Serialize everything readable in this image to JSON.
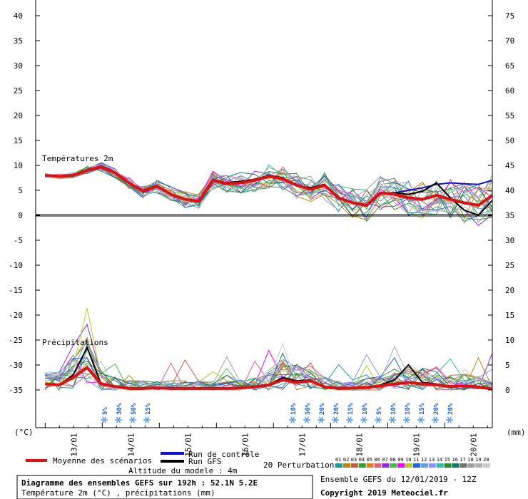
{
  "chart_data": {
    "type": "line",
    "x_dates": [
      "13/01",
      "14/01",
      "15/01",
      "16/01",
      "17/01",
      "18/01",
      "19/01",
      "20/01"
    ],
    "x_range_hours": [
      0,
      192
    ],
    "left_axis": {
      "unit": "(°C)",
      "ticks": [
        40,
        35,
        30,
        25,
        20,
        15,
        10,
        5,
        0,
        -5,
        -10,
        -15,
        -20,
        -25,
        -30,
        -35
      ],
      "range": [
        -35,
        40
      ]
    },
    "right_axis": {
      "unit": "(mm)",
      "ticks": [
        75,
        70,
        65,
        60,
        55,
        50,
        45,
        40,
        35,
        30,
        25,
        20,
        15,
        10,
        5,
        0
      ],
      "range": [
        0,
        75
      ]
    },
    "panel_temperature_label": "Températures 2m",
    "panel_precip_label": "Précipitations",
    "temperature": {
      "mean": [
        8,
        7.8,
        8,
        9,
        9.7,
        8.5,
        6.5,
        4.8,
        5.8,
        4.2,
        3.2,
        2.8,
        7,
        6.3,
        6.5,
        7,
        7.8,
        7.3,
        6,
        5.2,
        6,
        3.5,
        2.5,
        2,
        4.5,
        4.2,
        3.5,
        3.2,
        4,
        3.2,
        2.5,
        2,
        4
      ],
      "control": [
        8,
        7.8,
        8,
        9,
        9.7,
        8.5,
        6.5,
        4.8,
        5.8,
        4.2,
        3.2,
        2.8,
        7,
        6.3,
        6.5,
        7,
        7.8,
        7.3,
        6,
        5.2,
        6,
        3.5,
        2.5,
        2,
        4.5,
        4.5,
        5,
        5.5,
        6.2,
        6.5,
        6.3,
        6.2,
        7
      ],
      "gfs": [
        8,
        7.8,
        8,
        9,
        9.9,
        8.7,
        6.5,
        5,
        6,
        4.3,
        3.3,
        2.7,
        7.2,
        6.5,
        6.8,
        7.2,
        8,
        7.5,
        6,
        5.5,
        6.2,
        3.4,
        2.4,
        1.8,
        4.3,
        4.5,
        4.2,
        4.8,
        6.5,
        3.5,
        1,
        0,
        3
      ]
    },
    "precipitation_mm": {
      "mean": [
        1.2,
        1,
        2.5,
        4.5,
        1.2,
        0.7,
        0.3,
        0.3,
        0.4,
        0.3,
        0.3,
        0.3,
        0.3,
        0.3,
        0.4,
        0.6,
        1,
        2,
        1.5,
        1.8,
        0.6,
        0.3,
        0.4,
        0.5,
        0.8,
        1.2,
        1.5,
        1.2,
        1,
        0.7,
        0.8,
        0.6,
        0.2
      ],
      "gfs": [
        1.2,
        1,
        3,
        8.5,
        1.2,
        0.8,
        0.2,
        0.2,
        0.3,
        0.2,
        0.2,
        0.2,
        0.2,
        0.2,
        0.3,
        0.5,
        1,
        2.5,
        1.8,
        2,
        0.4,
        0.2,
        0.3,
        0.5,
        1,
        2,
        5,
        1.5,
        1.2,
        0.5,
        0.8,
        0.4,
        0.1
      ]
    },
    "snow_probabilities": [
      {
        "day": 1.2,
        "text": "5%"
      },
      {
        "day": 1.45,
        "text": "30%"
      },
      {
        "day": 1.7,
        "text": "50%"
      },
      {
        "day": 1.95,
        "text": "15%"
      },
      {
        "day": 4.5,
        "text": "10%"
      },
      {
        "day": 4.75,
        "text": "50%"
      },
      {
        "day": 5,
        "text": "20%"
      },
      {
        "day": 5.25,
        "text": "20%"
      },
      {
        "day": 5.5,
        "text": "15%"
      },
      {
        "day": 5.75,
        "text": "10%"
      },
      {
        "day": 6,
        "text": "5%"
      },
      {
        "day": 6.25,
        "text": "10%"
      },
      {
        "day": 6.5,
        "text": "10%"
      },
      {
        "day": 6.75,
        "text": "15%"
      },
      {
        "day": 7,
        "text": "20%"
      },
      {
        "day": 7.25,
        "text": "20%"
      }
    ],
    "grid": false
  },
  "legend": {
    "mean_label": "Moyenne des scénarios",
    "control_label": "Run de contrôle",
    "gfs_label": "Run GFS",
    "altitude_label": "Altitude du modele : 4m",
    "perturbations_label": "20 Perturbations",
    "perturbation_ids": [
      "01",
      "02",
      "03",
      "04",
      "05",
      "06",
      "07",
      "08",
      "09",
      "10",
      "11",
      "12",
      "13",
      "14",
      "15",
      "16",
      "17",
      "18",
      "19",
      "20"
    ],
    "perturbation_colors": [
      "#1a9c9c",
      "#b8860b",
      "#c06040",
      "#2ea02e",
      "#e08020",
      "#e06080",
      "#8a2be2",
      "#40c040",
      "#ff00ff",
      "#b0d020",
      "#2060ff",
      "#60a0e0",
      "#9090ff",
      "#30c0a0",
      "#2a8a2a",
      "#0a7a6a",
      "#707070",
      "#a0a0a0",
      "#b0b0b0",
      "#c8c8c8"
    ],
    "colors": {
      "mean": "#e01010",
      "control": "#1010e0",
      "gfs": "#000000"
    }
  },
  "footer": {
    "title": "Diagramme des ensembles GEFS sur 192h : 52.1N 5.2E",
    "subtitle": "Température 2m (°C) , précipitations (mm)",
    "run_info": "Ensemble GEFS du 12/01/2019 - 12Z",
    "copyright": "Copyright 2019 Meteociel.fr"
  }
}
